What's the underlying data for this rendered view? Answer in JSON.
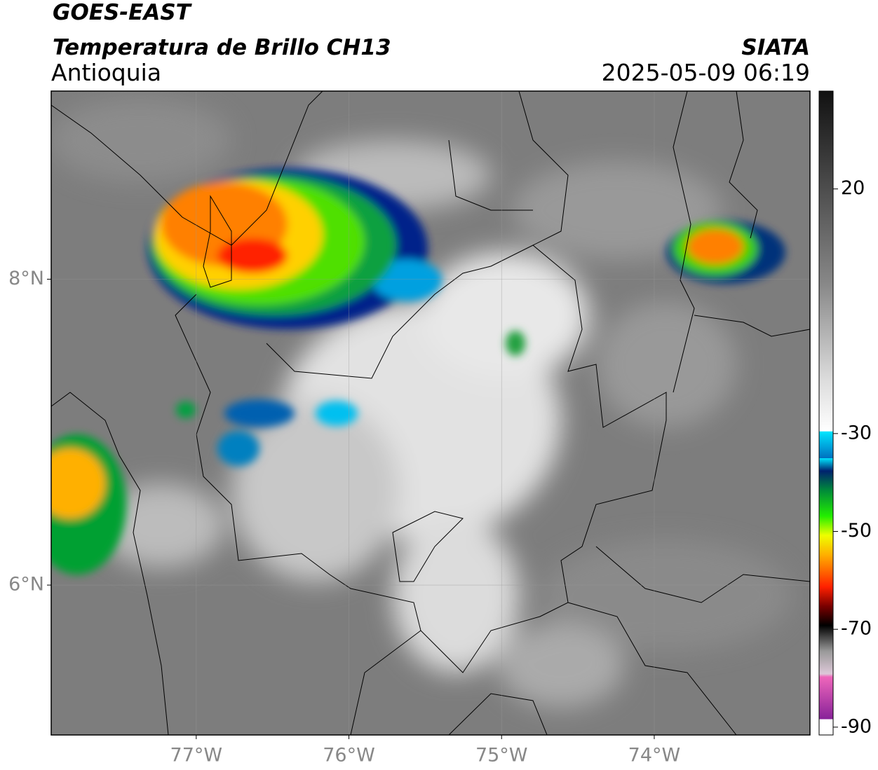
{
  "header": {
    "title": "GOES-EAST",
    "subtitle": "Temperatura de Brillo CH13",
    "region": "Antioquia",
    "source": "SIATA",
    "timestamp": "2025-05-09 06:19"
  },
  "map": {
    "xlim": [
      -77.95,
      -72.98
    ],
    "ylim": [
      5.02,
      9.23
    ],
    "xticks": [
      {
        "value": -77,
        "label": "77°W"
      },
      {
        "value": -76,
        "label": "76°W"
      },
      {
        "value": -75,
        "label": "75°W"
      },
      {
        "value": -74,
        "label": "74°W"
      }
    ],
    "yticks": [
      {
        "value": 8,
        "label": "8°N"
      },
      {
        "value": 6,
        "label": "6°N"
      }
    ]
  },
  "colorbar": {
    "range": [
      -91.6,
      40
    ],
    "ticks": [
      20,
      -30,
      -50,
      -70,
      -90
    ]
  }
}
